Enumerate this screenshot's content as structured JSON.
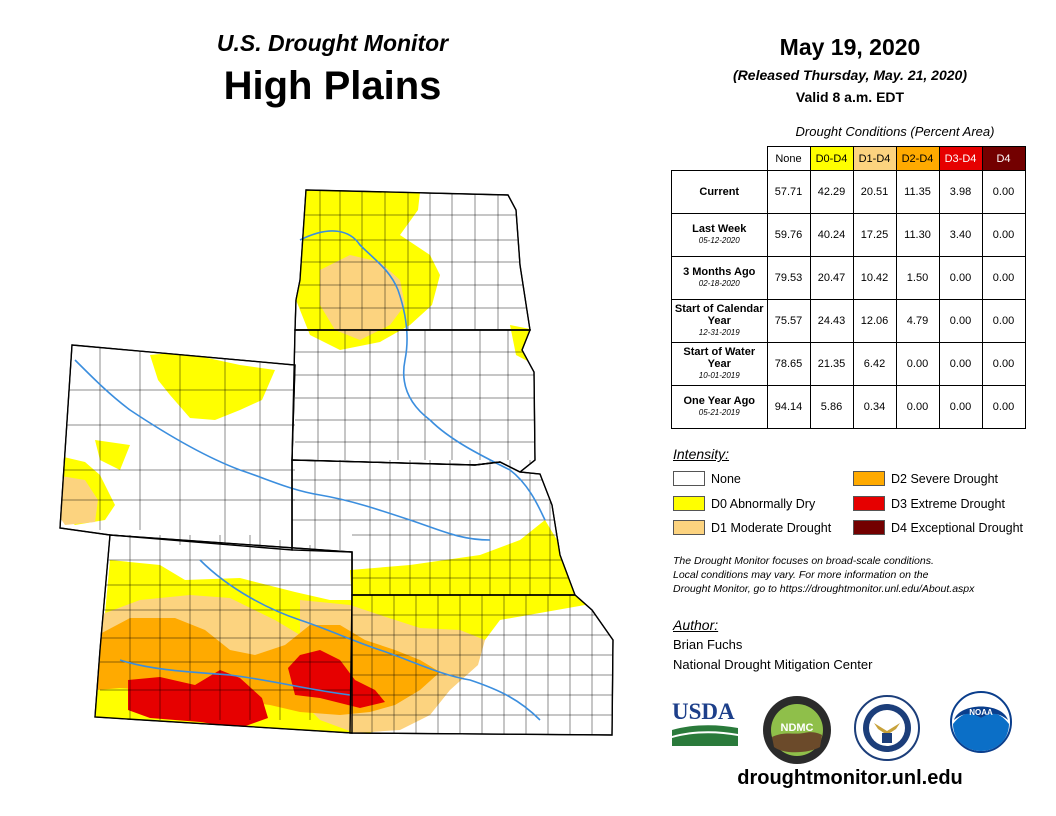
{
  "header": {
    "product": "U.S. Drought Monitor",
    "region": "High Plains",
    "date": "May 19, 2020",
    "released": "(Released Thursday, May. 21, 2020)",
    "valid": "Valid 8 a.m. EDT"
  },
  "table": {
    "caption": "Drought Conditions (Percent Area)",
    "columns": [
      {
        "label": "None",
        "color": "#ffffff"
      },
      {
        "label": "D0-D4",
        "color": "#ffff00"
      },
      {
        "label": "D1-D4",
        "color": "#fcd37f"
      },
      {
        "label": "D2-D4",
        "color": "#ffaa00"
      },
      {
        "label": "D3-D4",
        "color": "#e60000"
      },
      {
        "label": "D4",
        "color": "#730000"
      }
    ],
    "rows": [
      {
        "label": "Current",
        "sub": "",
        "values": [
          "57.71",
          "42.29",
          "20.51",
          "11.35",
          "3.98",
          "0.00"
        ]
      },
      {
        "label": "Last Week",
        "sub": "05-12-2020",
        "values": [
          "59.76",
          "40.24",
          "17.25",
          "11.30",
          "3.40",
          "0.00"
        ]
      },
      {
        "label": "3 Months Ago",
        "sub": "02-18-2020",
        "values": [
          "79.53",
          "20.47",
          "10.42",
          "1.50",
          "0.00",
          "0.00"
        ]
      },
      {
        "label": "Start of Calendar Year",
        "sub": "12-31-2019",
        "values": [
          "75.57",
          "24.43",
          "12.06",
          "4.79",
          "0.00",
          "0.00"
        ]
      },
      {
        "label": "Start of Water Year",
        "sub": "10-01-2019",
        "values": [
          "78.65",
          "21.35",
          "6.42",
          "0.00",
          "0.00",
          "0.00"
        ]
      },
      {
        "label": "One Year Ago",
        "sub": "05-21-2019",
        "values": [
          "94.14",
          "5.86",
          "0.34",
          "0.00",
          "0.00",
          "0.00"
        ]
      }
    ]
  },
  "legend": {
    "title": "Intensity:",
    "items": [
      {
        "label": "None",
        "color": "#ffffff"
      },
      {
        "label": "D0 Abnormally Dry",
        "color": "#ffff00"
      },
      {
        "label": "D1 Moderate Drought",
        "color": "#fcd37f"
      },
      {
        "label": "D2 Severe Drought",
        "color": "#ffaa00"
      },
      {
        "label": "D3 Extreme Drought",
        "color": "#e60000"
      },
      {
        "label": "D4 Exceptional Drought",
        "color": "#730000"
      }
    ]
  },
  "note": {
    "line1": "The Drought Monitor focuses on broad-scale conditions.",
    "line2": "Local conditions may vary. For more information on the",
    "line3": "Drought Monitor, go to https://droughtmonitor.unl.edu/About.aspx"
  },
  "author": {
    "title": "Author:",
    "name": "Brian Fuchs",
    "org": "National Drought Mitigation Center"
  },
  "logos": {
    "usda": "USDA",
    "ndmc": "NDMC",
    "noaa": "NOAA"
  },
  "footer": {
    "site": "droughtmonitor.unl.edu"
  }
}
